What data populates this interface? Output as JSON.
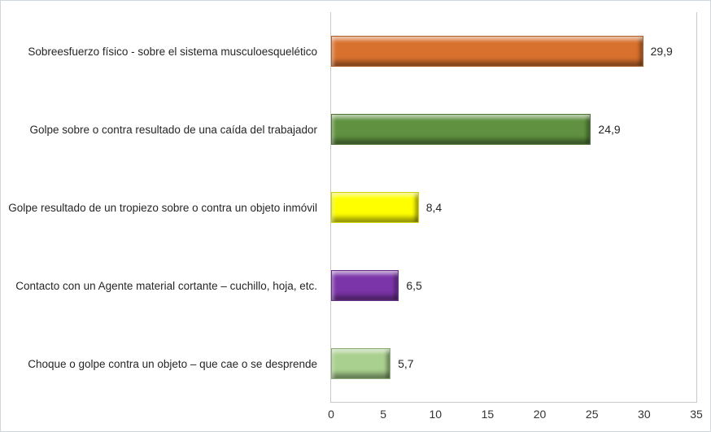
{
  "chart_data": {
    "type": "bar",
    "orientation": "horizontal",
    "title": "",
    "xlabel": "",
    "ylabel": "",
    "categories": [
      "Sobreesfuerzo físico - sobre el sistema musculoesquelético",
      "Golpe sobre o contra resultado de una caída del trabajador",
      "Golpe resultado de un tropiezo sobre o contra un objeto inmóvil",
      "Contacto con un Agente material cortante –  cuchillo, hoja, etc.",
      "Choque o golpe contra un objeto – que cae o se desprende"
    ],
    "values": [
      29.9,
      24.9,
      8.4,
      6.5,
      5.7
    ],
    "value_labels": [
      "29,9",
      "24,9",
      "8,4",
      "6,5",
      "5,7"
    ],
    "bar_colors": [
      "#d9712e",
      "#5f9140",
      "#ffff00",
      "#7c35a8",
      "#a9d08e"
    ],
    "xlim": [
      0,
      35
    ],
    "x_ticks": [
      "0",
      "5",
      "10",
      "15",
      "20",
      "25",
      "30",
      "35"
    ],
    "grid": false,
    "legend": false,
    "data_labels_position": "outside-end"
  }
}
